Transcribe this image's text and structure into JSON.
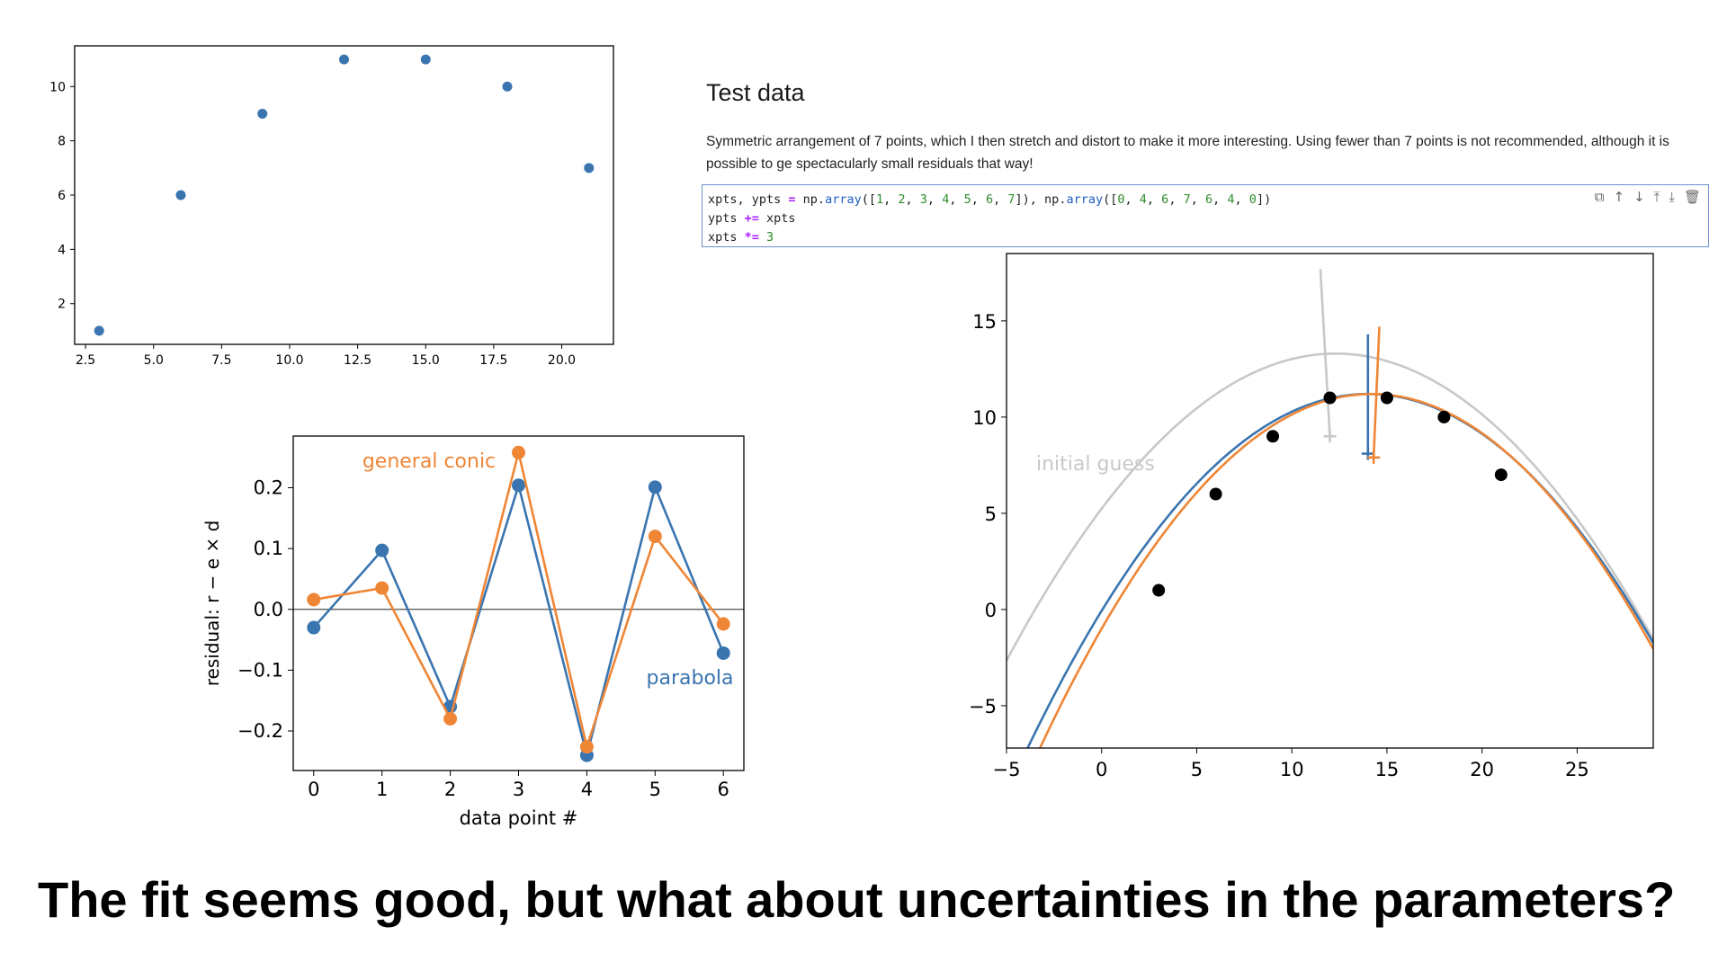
{
  "cell": {
    "title": "Test data",
    "description": "Symmetric arrangement of 7 points, which I then stretch and distort to make it more interesting. Using fewer than 7 points is not recommended, although it is possible to ge spectacularly small residuals that way!",
    "code_lines": [
      "xpts, ypts = np.array([1, 2, 3, 4, 5, 6, 7]), np.array([0, 4, 6, 7, 6, 4, 0])",
      "ypts += xpts",
      "xpts *= 3"
    ],
    "toolbar_icons": [
      "copy-icon",
      "move-up-icon",
      "move-down-icon",
      "insert-above-icon",
      "insert-below-icon",
      "delete-icon"
    ]
  },
  "caption": "The fit seems good, but what about uncertainties in the parameters?",
  "chart_data": [
    {
      "type": "scatter",
      "x": [
        3,
        6,
        9,
        12,
        15,
        18,
        21
      ],
      "y": [
        1,
        6,
        9,
        11,
        11,
        10,
        7
      ],
      "xlim": [
        2.1,
        21.9
      ],
      "ylim": [
        0.5,
        11.5
      ],
      "xticks": [
        2.5,
        5.0,
        7.5,
        10.0,
        12.5,
        15.0,
        17.5,
        20.0
      ],
      "xtick_labels": [
        "2.5",
        "5.0",
        "7.5",
        "10.0",
        "12.5",
        "15.0",
        "17.5",
        "20.0"
      ],
      "yticks": [
        2,
        4,
        6,
        8,
        10
      ],
      "ytick_labels": [
        "2",
        "4",
        "6",
        "8",
        "10"
      ],
      "color": "#3a75b0",
      "grid": false
    },
    {
      "type": "line",
      "xlabel": "data point #",
      "ylabel": "residual: r − e × d",
      "categories": [
        0,
        1,
        2,
        3,
        4,
        5,
        6
      ],
      "xtick_labels": [
        "0",
        "1",
        "2",
        "3",
        "4",
        "5",
        "6"
      ],
      "ytick_labels": [
        "−0.2",
        "−0.1",
        "0.0",
        "0.1",
        "0.2"
      ],
      "yticks": [
        -0.2,
        -0.1,
        0.0,
        0.1,
        0.2
      ],
      "xlim": [
        -0.3,
        6.3
      ],
      "ylim": [
        -0.265,
        0.285
      ],
      "zero_line": true,
      "series": [
        {
          "name": "parabola",
          "color": "#3a75b0",
          "values": [
            -0.03,
            0.097,
            -0.16,
            0.204,
            -0.24,
            0.201,
            -0.072
          ]
        },
        {
          "name": "general conic",
          "color": "#ef8636",
          "values": [
            0.016,
            0.035,
            -0.18,
            0.258,
            -0.226,
            0.12,
            -0.024
          ]
        }
      ]
    },
    {
      "type": "line",
      "xlim": [
        -5,
        29
      ],
      "ylim": [
        -7.2,
        18.5
      ],
      "xticks": [
        -5,
        0,
        5,
        10,
        15,
        20,
        25
      ],
      "xtick_labels": [
        "−5",
        "0",
        "5",
        "10",
        "15",
        "20",
        "25"
      ],
      "yticks": [
        -5,
        0,
        5,
        10,
        15
      ],
      "ytick_labels": [
        "−5",
        "0",
        "5",
        "10",
        "15"
      ],
      "points": {
        "x": [
          3,
          6,
          9,
          12,
          15,
          18,
          21
        ],
        "y": [
          1,
          6,
          9,
          11,
          11,
          10,
          7
        ],
        "color": "#000000"
      },
      "series": [
        {
          "name": "initial guess",
          "color": "#c8c8c8",
          "vertex": [
            12.3,
            13.3
          ],
          "curvature": 0.0533,
          "focus": [
            12,
            9
          ],
          "axis_end": [
            11.5,
            17.7
          ]
        },
        {
          "name": "parabola",
          "color": "#3a75b0",
          "vertex": [
            14.0,
            11.2
          ],
          "curvature": 0.0575,
          "focus": [
            14,
            8.1
          ],
          "axis_end": [
            14,
            14.3
          ]
        },
        {
          "name": "general conic",
          "color": "#ef8636",
          "vertex": [
            14.2,
            11.2
          ],
          "curvature": 0.0605,
          "focus": [
            14.3,
            7.9
          ],
          "axis_end": [
            14.6,
            14.7
          ]
        }
      ],
      "annotation": "initial guess"
    }
  ]
}
